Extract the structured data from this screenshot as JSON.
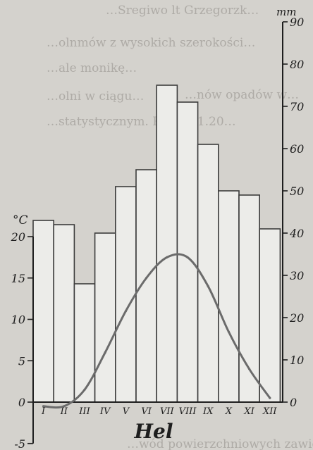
{
  "background_text": [
    "…Sregiwo lt Grzegorzk…",
    "…olnmów z wysokich szerokości…",
    "…ale monikę…",
    "…nów opadów w…",
    "…olni w ciągu…",
    "…statystycznym. Rycina 1.20…",
    "…wód powierzchniowych zawiera…"
  ],
  "chart_data": {
    "type": "bar",
    "title": "Hel",
    "categories": [
      "I",
      "II",
      "III",
      "IV",
      "V",
      "VI",
      "VII",
      "VIII",
      "IX",
      "X",
      "XI",
      "XII"
    ],
    "series": [
      {
        "kind": "bar",
        "axis": "right",
        "values": [
          43,
          42,
          28,
          40,
          51,
          55,
          75,
          71,
          61,
          50,
          49,
          41
        ]
      },
      {
        "kind": "line",
        "axis": "left",
        "values": [
          -0.5,
          -0.5,
          1.5,
          6,
          11,
          15,
          17.5,
          17.5,
          14,
          8.5,
          4,
          0.5
        ]
      }
    ],
    "y_left": {
      "label": "°C",
      "ticks": [
        -5,
        0,
        5,
        10,
        15,
        20
      ],
      "range": [
        -5,
        20
      ]
    },
    "y_right": {
      "label": "mm",
      "ticks": [
        0,
        10,
        20,
        30,
        40,
        50,
        60,
        70,
        80,
        90
      ],
      "range": [
        0,
        90
      ]
    },
    "grid": false,
    "colors": {
      "bars": "#ecece9",
      "bar_stroke": "#3c3c3c",
      "temperature_line": "#6b6b6b",
      "axis": "#1e1e1e"
    }
  }
}
